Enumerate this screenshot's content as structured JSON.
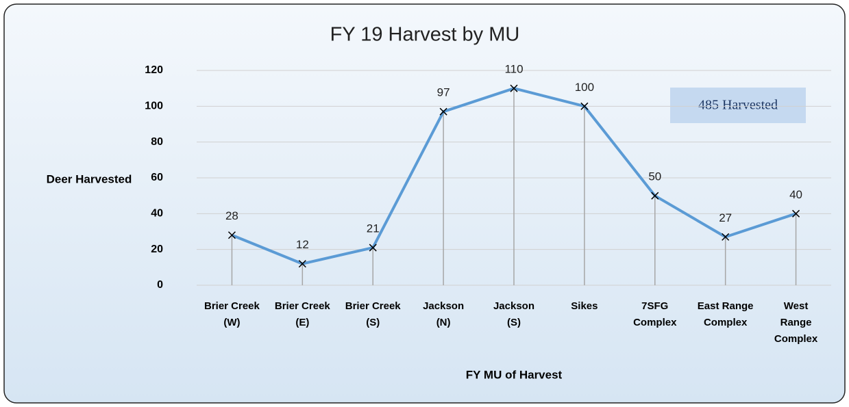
{
  "chart_data": {
    "type": "line",
    "title": "FY 19 Harvest by MU",
    "y_label": "Deer Harvested",
    "x_label": "FY MU of Harvest",
    "annotation": "485 Harvested",
    "categories": [
      "Brier Creek (W)",
      "Brier Creek (E)",
      "Brier Creek (S)",
      "Jackson (N)",
      "Jackson (S)",
      "Sikes",
      "7SFG Complex",
      "East Range Complex",
      "West Range Complex"
    ],
    "series": [
      {
        "name": "Deer Harvested",
        "color": "#5b9bd5",
        "values": [
          28,
          12,
          21,
          97,
          110,
          100,
          50,
          27,
          40
        ]
      }
    ],
    "ylim": [
      0,
      120
    ],
    "yticks": [
      0,
      20,
      40,
      60,
      80,
      100,
      120
    ],
    "grid": true
  }
}
